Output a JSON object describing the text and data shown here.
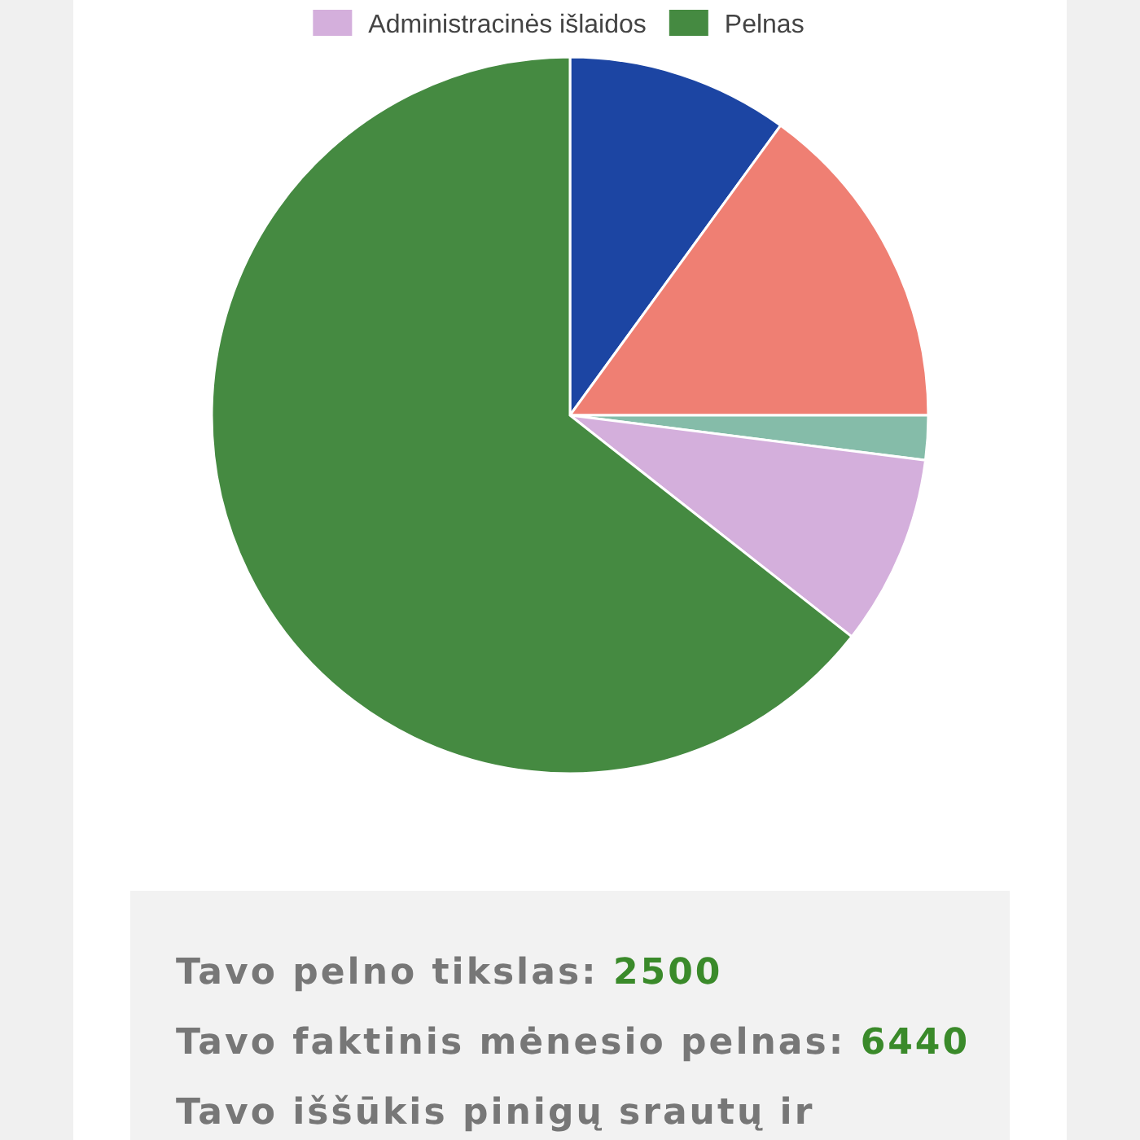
{
  "chart_data": {
    "type": "pie",
    "categories": [
      null,
      null,
      null,
      "Administracinės išlaidos",
      "Pelnas"
    ],
    "values": [
      10,
      15,
      2,
      8.6,
      64.4
    ],
    "colors": [
      "#1c45a3",
      "#ef7f73",
      "#85bca9",
      "#d4afdc",
      "#458a41"
    ],
    "legend": "top",
    "annotations": [
      "Tavo pelno tikslas: 2500",
      "Tavo faktinis mėnesio pelnas: 6440",
      "Tavo iššūkis pinigų srautų ir"
    ]
  }
}
